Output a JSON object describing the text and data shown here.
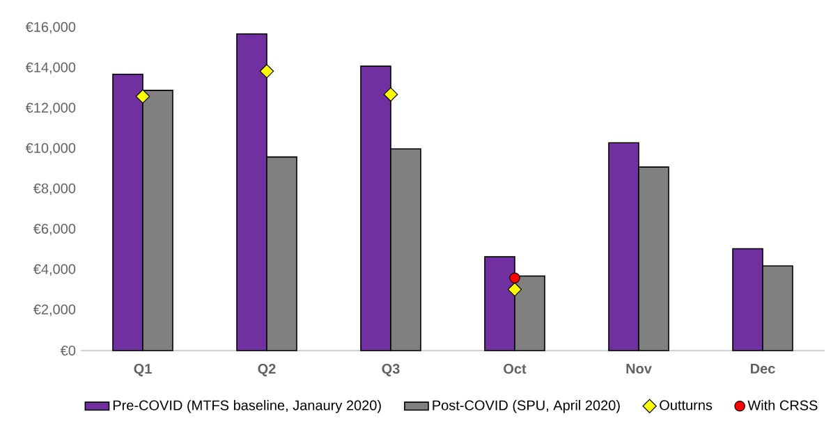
{
  "chart_data": {
    "type": "bar",
    "categories": [
      "Q1",
      "Q2",
      "Q3",
      "Oct",
      "Nov",
      "Dec"
    ],
    "series": [
      {
        "name": "Pre-COVID (MTFS baseline, Janaury 2020)",
        "color": "#7030a0",
        "values": [
          13700,
          15700,
          14100,
          4650,
          10300,
          5050
        ]
      },
      {
        "name": "Post-COVID (SPU, April 2020)",
        "color": "#808080",
        "values": [
          12900,
          9600,
          10000,
          3700,
          9100,
          4200
        ]
      },
      {
        "name": "Outturns",
        "type": "scatter",
        "marker": "diamond",
        "color": "#ffff00",
        "x": [
          "Q1",
          "Q2",
          "Q3",
          "Oct"
        ],
        "values": [
          12600,
          13850,
          12700,
          3030
        ]
      },
      {
        "name": "With CRSS",
        "type": "scatter",
        "marker": "circle",
        "color": "#ff0000",
        "x": [
          "Oct"
        ],
        "values": [
          3600
        ]
      }
    ],
    "ylim": [
      0,
      16000
    ],
    "yticks": [
      {
        "value": 0,
        "label": "€0"
      },
      {
        "value": 2000,
        "label": "€2,000"
      },
      {
        "value": 4000,
        "label": "€4,000"
      },
      {
        "value": 6000,
        "label": "€6,000"
      },
      {
        "value": 8000,
        "label": "€8,000"
      },
      {
        "value": 10000,
        "label": "€10,000"
      },
      {
        "value": 12000,
        "label": "€12,000"
      },
      {
        "value": 14000,
        "label": "€14,000"
      },
      {
        "value": 16000,
        "label": "€16,000"
      }
    ],
    "grid": false,
    "legend": "bottom"
  }
}
